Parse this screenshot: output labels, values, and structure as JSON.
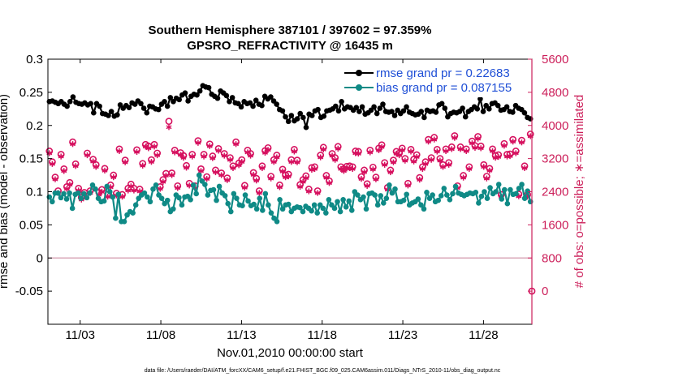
{
  "chart_data": {
    "type": "line",
    "title_line1": "Southern Hemisphere 387101 / 397602 = 97.359%",
    "title_line2": "GPSRO_REFRACTIVITY @ 16435 m",
    "xlabel": "Nov.01,2010 00:00:00 start",
    "ylabel": "rmse and bias (model - observation)",
    "ylabel_right": "# of obs: o=possible; ∗=assimilated",
    "footnote": "data file: /Users/raeder/DAI/ATM_forcXX/CAM6_setup/f.e21.FHIST_BGC.f09_025.CAM6assim.011/Diags_NTrS_2010-11/obs_diag_output.nc",
    "x_tick_labels": [
      "11/03",
      "11/08",
      "11/13",
      "11/18",
      "11/23",
      "11/28"
    ],
    "x_tick_days": [
      3,
      8,
      13,
      18,
      23,
      28
    ],
    "xlim_days": [
      1.0,
      31.0
    ],
    "ylim": [
      -0.1,
      0.3
    ],
    "y_ticks": [
      "0.3",
      "0.25",
      "0.2",
      "0.15",
      "0.1",
      "0.05",
      "0",
      "-0.05"
    ],
    "ylim_right": [
      -800,
      5600
    ],
    "y_ticks_right": [
      "5600",
      "4800",
      "4000",
      "3200",
      "2400",
      "1600",
      "800",
      "0"
    ],
    "grid": false,
    "legend_position": "top-right",
    "colors": {
      "rmse": "#000000",
      "bias": "#0f8a86",
      "obs": "#d6115f",
      "zero_line": "#d9a8b8"
    },
    "series": [
      {
        "name": "rmse grand pr = 0.22683",
        "axis": "left",
        "values": [
          0.236,
          0.237,
          0.235,
          0.233,
          0.236,
          0.232,
          0.229,
          0.236,
          0.243,
          0.235,
          0.233,
          0.232,
          0.234,
          0.231,
          0.233,
          0.219,
          0.233,
          0.229,
          0.218,
          0.217,
          0.215,
          0.221,
          0.214,
          0.216,
          0.231,
          0.226,
          0.23,
          0.227,
          0.234,
          0.232,
          0.237,
          0.233,
          0.226,
          0.219,
          0.229,
          0.228,
          0.225,
          0.224,
          0.232,
          0.236,
          0.229,
          0.242,
          0.236,
          0.241,
          0.239,
          0.246,
          0.249,
          0.237,
          0.244,
          0.247,
          0.246,
          0.252,
          0.26,
          0.258,
          0.257,
          0.247,
          0.244,
          0.241,
          0.252,
          0.249,
          0.245,
          0.236,
          0.242,
          0.234,
          0.233,
          0.228,
          0.236,
          0.233,
          0.234,
          0.229,
          0.238,
          0.232,
          0.23,
          0.244,
          0.24,
          0.243,
          0.237,
          0.232,
          0.224,
          0.222,
          0.213,
          0.206,
          0.215,
          0.207,
          0.21,
          0.218,
          0.212,
          0.197,
          0.217,
          0.215,
          0.222,
          0.224,
          0.212,
          0.214,
          0.222,
          0.223,
          0.225,
          0.229,
          0.222,
          0.236,
          0.225,
          0.228,
          0.227,
          0.223,
          0.227,
          0.221,
          0.228,
          0.217,
          0.219,
          0.223,
          0.228,
          0.218,
          0.226,
          0.232,
          0.221,
          0.22,
          0.221,
          0.215,
          0.223,
          0.218,
          0.222,
          0.228,
          0.22,
          0.218,
          0.216,
          0.217,
          0.221,
          0.212,
          0.223,
          0.221,
          0.222,
          0.22,
          0.231,
          0.233,
          0.226,
          0.213,
          0.218,
          0.22,
          0.219,
          0.221,
          0.226,
          0.213,
          0.221,
          0.224,
          0.228,
          0.225,
          0.24,
          0.221,
          0.23,
          0.225,
          0.233,
          0.234,
          0.23,
          0.223,
          0.224,
          0.228,
          0.221,
          0.22,
          0.23,
          0.226,
          0.224,
          0.219,
          0.212,
          0.21
        ]
      },
      {
        "name": "bias grand pr = 0.087155",
        "axis": "left",
        "values": [
          0.092,
          0.085,
          0.098,
          0.098,
          0.091,
          0.097,
          0.089,
          0.098,
          0.075,
          0.096,
          0.098,
          0.09,
          0.097,
          0.091,
          0.098,
          0.11,
          0.104,
          0.09,
          0.085,
          0.086,
          0.108,
          0.1,
          0.092,
          0.06,
          0.096,
          0.055,
          0.055,
          0.065,
          0.07,
          0.068,
          0.08,
          0.09,
          0.095,
          0.098,
          0.092,
          0.085,
          0.104,
          0.11,
          0.095,
          0.09,
          0.082,
          0.087,
          0.07,
          0.074,
          0.095,
          0.091,
          0.08,
          0.092,
          0.093,
          0.088,
          0.11,
          0.097,
          0.125,
          0.116,
          0.111,
          0.095,
          0.102,
          0.103,
          0.087,
          0.108,
          0.098,
          0.094,
          0.082,
          0.07,
          0.097,
          0.09,
          0.08,
          0.079,
          0.095,
          0.086,
          0.079,
          0.081,
          0.074,
          0.09,
          0.072,
          0.097,
          0.08,
          0.068,
          0.06,
          0.055,
          0.088,
          0.074,
          0.08,
          0.081,
          0.07,
          0.075,
          0.077,
          0.076,
          0.07,
          0.078,
          0.075,
          0.071,
          0.08,
          0.068,
          0.08,
          0.075,
          0.068,
          0.088,
          0.08,
          0.075,
          0.085,
          0.07,
          0.088,
          0.077,
          0.086,
          0.072,
          0.1,
          0.095,
          0.088,
          0.092,
          0.074,
          0.097,
          0.098,
          0.095,
          0.08,
          0.094,
          0.083,
          0.09,
          0.11,
          0.098,
          0.104,
          0.085,
          0.085,
          0.087,
          0.096,
          0.08,
          0.083,
          0.085,
          0.089,
          0.08,
          0.074,
          0.099,
          0.09,
          0.095,
          0.085,
          0.087,
          0.094,
          0.105,
          0.095,
          0.088,
          0.097,
          0.108,
          0.098,
          0.096,
          0.094,
          0.096,
          0.098,
          0.097,
          0.099,
          0.083,
          0.093,
          0.1,
          0.09,
          0.106,
          0.097,
          0.1,
          0.111,
          0.089,
          0.103,
          0.082,
          0.103,
          0.096,
          0.097,
          0.105,
          0.111,
          0.09,
          0.101,
          0.085
        ]
      }
    ],
    "obs_series": [
      {
        "name": "possible",
        "marker": "o",
        "axis": "right",
        "values": [
          3380,
          3120,
          2750,
          2420,
          3300,
          2950,
          2520,
          2620,
          3600,
          3070,
          2480,
          2260,
          2380,
          3330,
          2420,
          3180,
          3050,
          2380,
          2450,
          2960,
          2330,
          2560,
          2800,
          2360,
          3430,
          2330,
          3160,
          2480,
          2580,
          2480,
          3410,
          2460,
          3080,
          3540,
          3500,
          3170,
          3540,
          3330,
          2520,
          2690,
          2840,
          4100,
          2850,
          3400,
          2540,
          3340,
          3270,
          3030,
          2600,
          3300,
          2540,
          3630,
          2950,
          3300,
          2760,
          3550,
          3260,
          2920,
          3440,
          2850,
          3320,
          2730,
          3220,
          3020,
          3600,
          3090,
          3170,
          2550,
          3400,
          3320,
          2860,
          2720,
          2420,
          3020,
          3390,
          3460,
          2770,
          3170,
          3280,
          2560,
          2940,
          2800,
          2820,
          3170,
          3420,
          3160,
          2570,
          2690,
          2780,
          2460,
          2980,
          3000,
          2420,
          3280,
          3470,
          2790,
          2660,
          3320,
          3220,
          3490,
          3000,
          2950,
          3010,
          3020,
          3000,
          3380,
          3370,
          2760,
          2920,
          2590,
          3400,
          2990,
          2750,
          3450,
          3530,
          3100,
          2500,
          2920,
          3160,
          3370,
          3330,
          3450,
          3200,
          2600,
          3420,
          3180,
          3290,
          2740,
          3000,
          3120,
          3660,
          3220,
          3710,
          3420,
          3200,
          3050,
          3430,
          3100,
          3480,
          3750,
          2540,
          3480,
          2790,
          3430,
          3000,
          3620,
          3510,
          3730,
          3500,
          3050,
          2770,
          2960,
          3430,
          3270,
          3290,
          2330,
          3560,
          3300,
          3310,
          3660,
          3380,
          2340,
          3640,
          3020,
          2330,
          3790
        ]
      },
      {
        "name": "assimilated",
        "marker": "*",
        "axis": "right",
        "values": [
          3330,
          3070,
          2700,
          2370,
          3250,
          2900,
          2470,
          2570,
          3550,
          3020,
          2430,
          2210,
          2330,
          3280,
          2370,
          3130,
          3000,
          2330,
          2400,
          2910,
          2280,
          2510,
          2750,
          2310,
          3380,
          2280,
          3110,
          2430,
          2530,
          2430,
          3360,
          2410,
          3030,
          3490,
          3450,
          3120,
          3490,
          3280,
          2470,
          2640,
          2790,
          3960,
          2800,
          3350,
          2490,
          3290,
          3220,
          2980,
          2550,
          3250,
          2490,
          3580,
          2900,
          3250,
          2710,
          3500,
          3210,
          2870,
          3390,
          2800,
          3270,
          2680,
          3170,
          2970,
          3550,
          3040,
          3120,
          2500,
          3350,
          3270,
          2810,
          2670,
          2370,
          2970,
          3340,
          3410,
          2720,
          3120,
          3230,
          2510,
          2890,
          2750,
          2770,
          3120,
          3370,
          3110,
          2520,
          2640,
          2730,
          2410,
          2930,
          2950,
          2370,
          3230,
          3420,
          2740,
          2610,
          3270,
          3170,
          3440,
          2950,
          2900,
          2960,
          2970,
          2950,
          3330,
          3320,
          2710,
          2870,
          2540,
          3350,
          2940,
          2700,
          3400,
          3480,
          3050,
          2450,
          2870,
          3110,
          3320,
          3280,
          3400,
          3150,
          2550,
          3370,
          3130,
          3240,
          2690,
          2950,
          3070,
          3610,
          3170,
          3660,
          3370,
          3150,
          3000,
          3380,
          3050,
          3430,
          3700,
          2490,
          3430,
          2740,
          3380,
          2950,
          3570,
          3460,
          3680,
          3450,
          3000,
          2720,
          2910,
          3380,
          3220,
          3240,
          2280,
          3510,
          3250,
          3260,
          3610,
          3330,
          2290,
          3590,
          2970,
          2280,
          3740
        ]
      },
      {
        "name": "zero-point",
        "marker": "o",
        "axis": "right",
        "x_days": 31.0,
        "values": [
          0
        ]
      }
    ]
  }
}
